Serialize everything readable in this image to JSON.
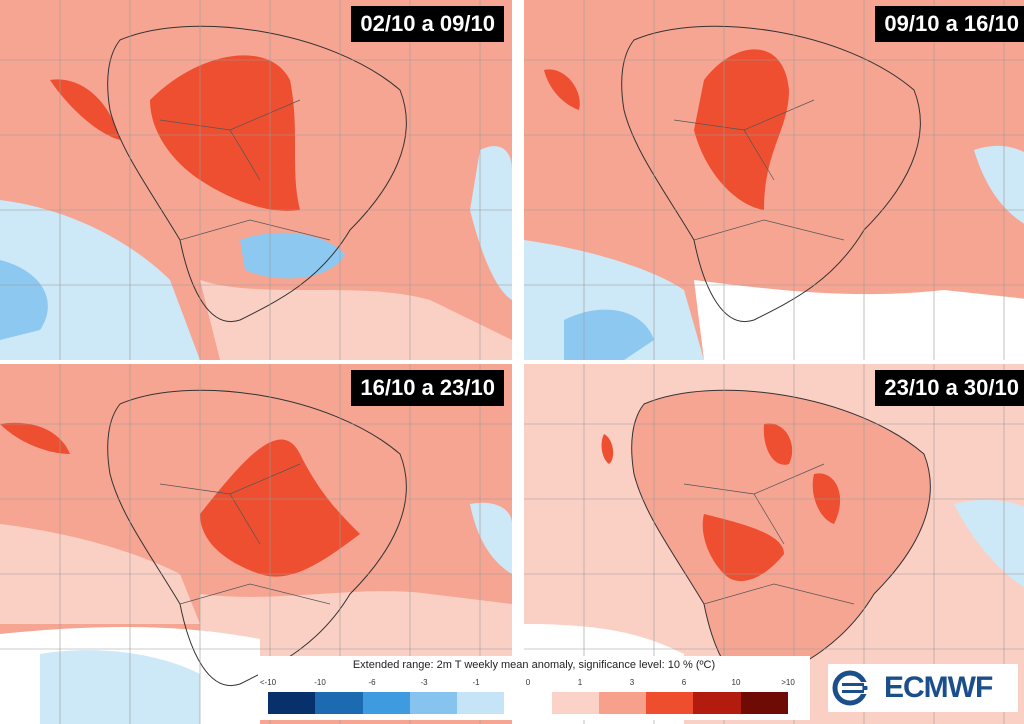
{
  "panels": [
    {
      "label": "02/10 a 09/10"
    },
    {
      "label": "09/10 a 16/10"
    },
    {
      "label": "16/10 a 23/10"
    },
    {
      "label": "23/10 a 30/10"
    }
  ],
  "legend": {
    "title": "Extended range: 2m T weekly mean anomaly, significance level: 10 % (ºC)",
    "ticks": [
      "<-10",
      "-10",
      "-6",
      "-3",
      "-1",
      "0",
      "1",
      "3",
      "6",
      "10",
      ">10"
    ],
    "colors": [
      "#08306b",
      "#1c6bb0",
      "#3f9be0",
      "#86c4ef",
      "#c6e4f7",
      "#ffffff",
      "#fbd2c8",
      "#f7a08c",
      "#ef4e2e",
      "#b31b0e",
      "#6e0b05"
    ]
  },
  "logo": {
    "text": "ECMWF"
  },
  "colors": {
    "warm_light": "#fbd0c4",
    "warm_mid": "#f7a593",
    "warm_strong": "#ee4f30",
    "cool_light": "#cde8f7",
    "cool_mid": "#8cc8ef",
    "grid": "#999999"
  }
}
